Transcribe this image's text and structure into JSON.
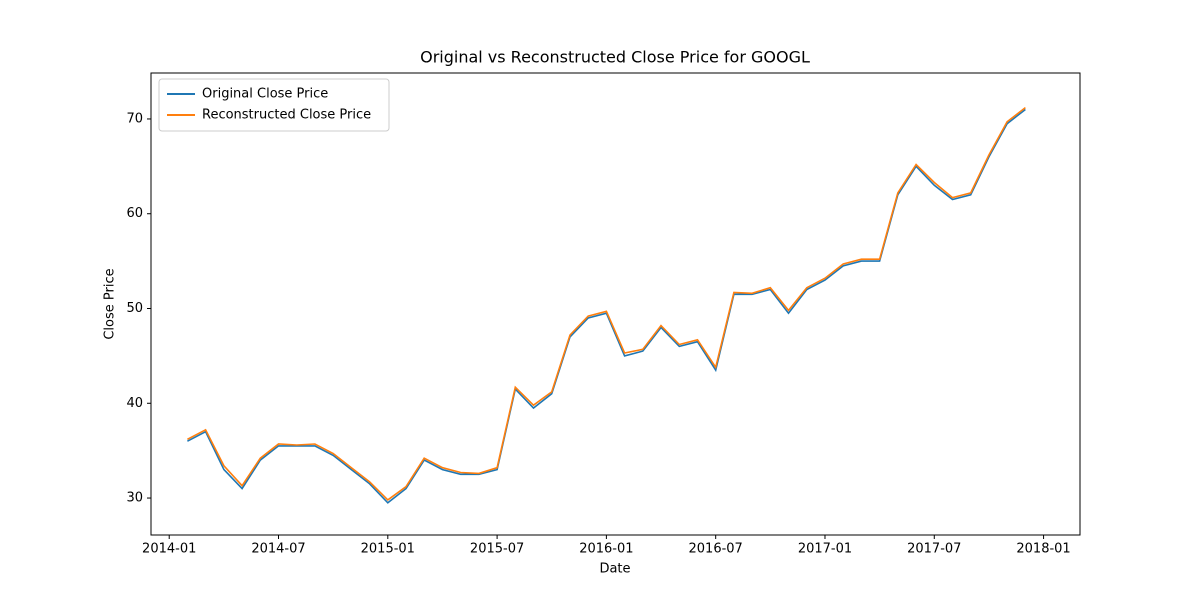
{
  "chart_data": {
    "type": "line",
    "title": "Original vs Reconstructed Close Price for GOOGL",
    "xlabel": "Date",
    "ylabel": "Close Price",
    "x": [
      "2014-02",
      "2014-03",
      "2014-04",
      "2014-05",
      "2014-06",
      "2014-07",
      "2014-08",
      "2014-09",
      "2014-10",
      "2014-11",
      "2014-12",
      "2015-01",
      "2015-02",
      "2015-03",
      "2015-04",
      "2015-05",
      "2015-06",
      "2015-07",
      "2015-08",
      "2015-09",
      "2015-10",
      "2015-11",
      "2015-12",
      "2016-01",
      "2016-02",
      "2016-03",
      "2016-04",
      "2016-05",
      "2016-06",
      "2016-07",
      "2016-08",
      "2016-09",
      "2016-10",
      "2016-11",
      "2016-12",
      "2017-01",
      "2017-02",
      "2017-03",
      "2017-04",
      "2017-05",
      "2017-06",
      "2017-07",
      "2017-08",
      "2017-09",
      "2017-10",
      "2017-11",
      "2017-12"
    ],
    "series": [
      {
        "name": "Original Close Price",
        "color": "#1f77b4",
        "values": [
          36,
          37,
          33,
          31,
          34,
          35.5,
          35.5,
          35.5,
          34.5,
          33,
          31.5,
          29.5,
          31,
          34,
          33,
          32.5,
          32.5,
          33,
          41.5,
          39.5,
          41,
          47,
          49,
          49.5,
          45,
          45.5,
          48,
          46,
          46.5,
          43.5,
          51.5,
          51.5,
          52,
          49.5,
          52,
          53,
          54.5,
          55,
          55,
          62,
          65,
          63,
          61.5,
          62,
          66,
          69.5,
          71
        ]
      },
      {
        "name": "Reconstructed Close Price",
        "color": "#ff7f0e",
        "values": [
          36.2,
          37.2,
          33.4,
          31.3,
          34.2,
          35.7,
          35.6,
          35.7,
          34.7,
          33.2,
          31.7,
          29.8,
          31.2,
          34.2,
          33.2,
          32.7,
          32.6,
          33.2,
          41.7,
          39.8,
          41.2,
          47.2,
          49.2,
          49.7,
          45.3,
          45.7,
          48.2,
          46.2,
          46.7,
          43.8,
          51.7,
          51.6,
          52.2,
          49.8,
          52.2,
          53.2,
          54.7,
          55.2,
          55.2,
          62.2,
          65.2,
          63.3,
          61.7,
          62.2,
          66.2,
          69.7,
          71.2
        ]
      }
    ],
    "xlim": [
      "2013-12",
      "2018-03"
    ],
    "xticks": [
      "2014-01",
      "2014-07",
      "2015-01",
      "2015-07",
      "2016-01",
      "2016-07",
      "2017-01",
      "2017-07",
      "2018-01"
    ],
    "ylim": [
      26.1,
      74.85
    ],
    "yticks": [
      30,
      40,
      50,
      60,
      70
    ],
    "grid": false,
    "legend": "upper left"
  }
}
